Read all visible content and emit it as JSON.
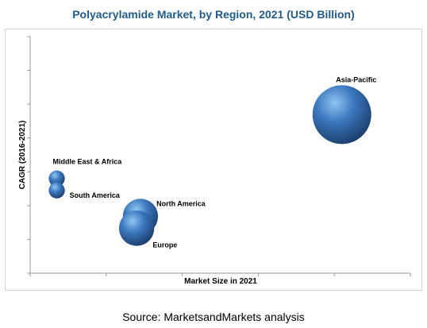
{
  "chart_data": {
    "type": "bubble",
    "title": "Polyacrylamide Market, by Region, 2021 (USD Billion)",
    "xlabel": "Market Size in 2021",
    "ylabel": "CAGR (2016-2021)",
    "xlim": [
      0,
      10
    ],
    "ylim": [
      0,
      10
    ],
    "series": [
      {
        "name": "Asia-Pacific",
        "x": 8.2,
        "y": 6.7,
        "size": 10
      },
      {
        "name": "North America",
        "x": 2.9,
        "y": 2.4,
        "size": 3.6
      },
      {
        "name": "Europe",
        "x": 2.8,
        "y": 1.9,
        "size": 3.6
      },
      {
        "name": "Middle East & Africa",
        "x": 0.7,
        "y": 4.0,
        "size": 0.75
      },
      {
        "name": "South America",
        "x": 0.7,
        "y": 3.5,
        "size": 0.75
      }
    ]
  },
  "source_text": "Source: MarketsandMarkets analysis",
  "colors": {
    "title": "#1f5c8b",
    "bubble_light": "#8fc4f2",
    "bubble_mid": "#3b78be",
    "bubble_dark": "#1c3f6e",
    "axis": "#9a9a9a"
  }
}
